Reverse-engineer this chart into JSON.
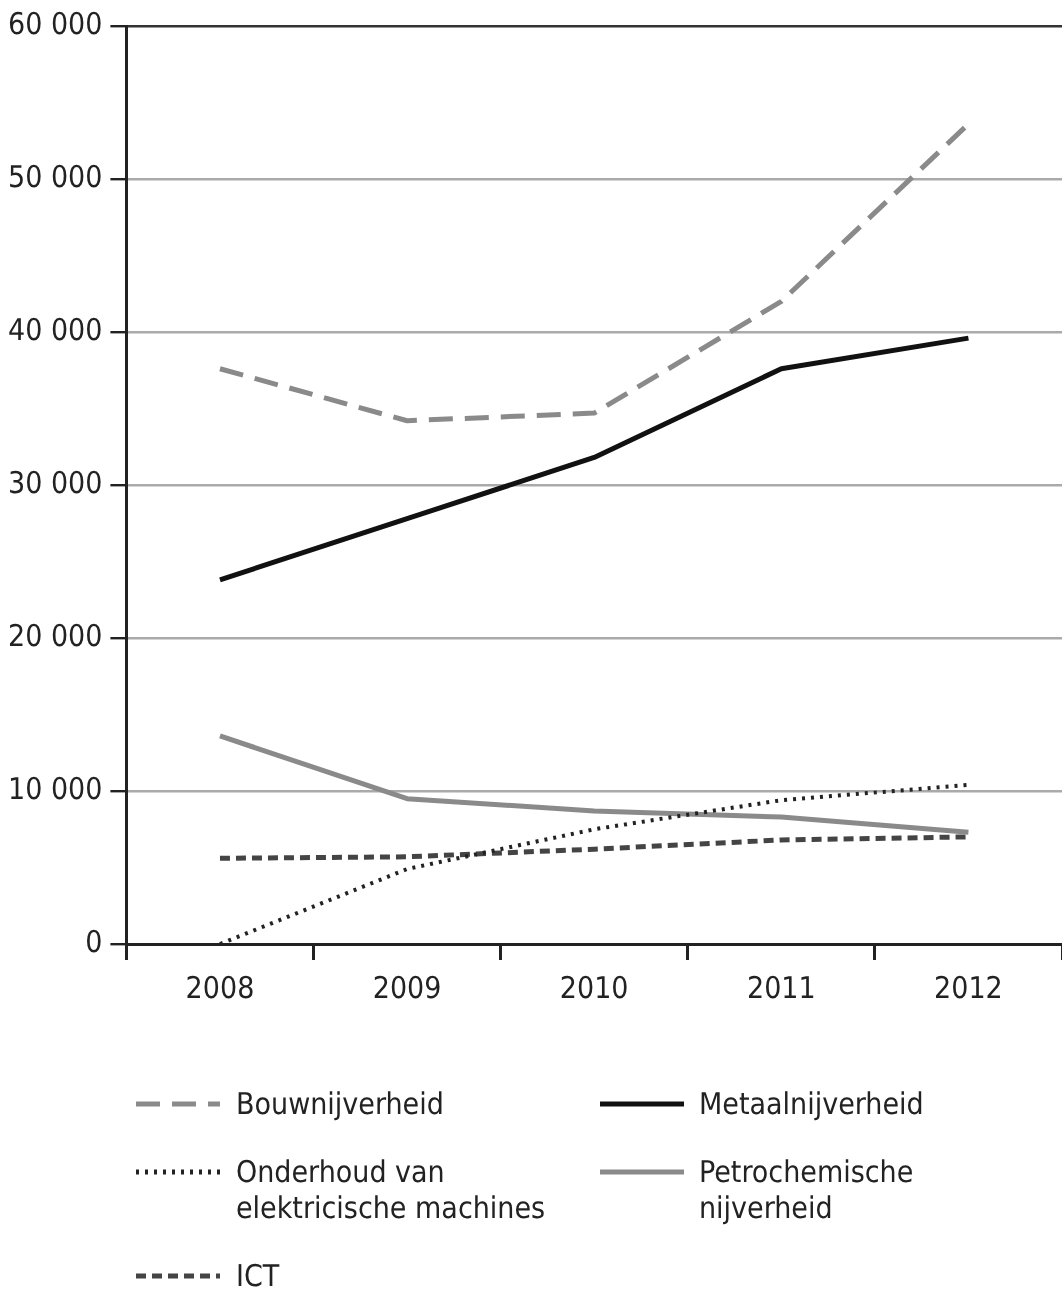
{
  "chart_data": {
    "type": "line",
    "categories": [
      "2008",
      "2009",
      "2010",
      "2011",
      "2012"
    ],
    "series": [
      {
        "name": "Bouwnijverheid",
        "color": "#8a8a8a",
        "line_style": "dashed",
        "values": [
          37600,
          34200,
          34700,
          42000,
          53600
        ]
      },
      {
        "name": "Metaalnijverheid",
        "color": "#111111",
        "line_style": "solid",
        "values": [
          23800,
          27800,
          31800,
          37600,
          39600
        ]
      },
      {
        "name": "Onderhoud van elektricische machines",
        "color": "#222222",
        "line_style": "dotted",
        "values": [
          0,
          4900,
          7500,
          9400,
          10400
        ]
      },
      {
        "name": "Petrochemische nijverheid",
        "color": "#8a8a8a",
        "line_style": "solid",
        "values": [
          13600,
          9500,
          8700,
          8300,
          7300
        ]
      },
      {
        "name": "ICT",
        "color": "#444444",
        "line_style": "shortdash",
        "values": [
          5600,
          5700,
          6200,
          6800,
          7000
        ]
      }
    ],
    "ylim": [
      0,
      60000
    ],
    "yticks": [
      {
        "value": 0,
        "label": "0"
      },
      {
        "value": 10000,
        "label": "10 000"
      },
      {
        "value": 20000,
        "label": "20 000"
      },
      {
        "value": 30000,
        "label": "30 000"
      },
      {
        "value": 40000,
        "label": "40 000"
      },
      {
        "value": 50000,
        "label": "50 000"
      },
      {
        "value": 60000,
        "label": "60 000"
      }
    ],
    "grid": "y",
    "legend": "bottom",
    "marker": "none"
  }
}
